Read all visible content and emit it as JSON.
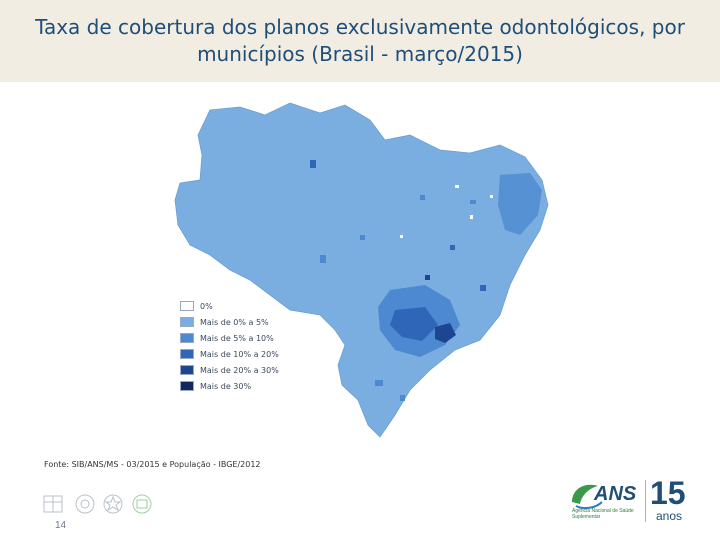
{
  "title": "Taxa de cobertura dos planos exclusivamente odontológicos, por municípios (Brasil - março/2015)",
  "legend": [
    {
      "label": "0%",
      "color": "#ffffff"
    },
    {
      "label": "Mais de 0% a 5%",
      "color": "#7aaee0"
    },
    {
      "label": "Mais de 5% a 10%",
      "color": "#4d89d0"
    },
    {
      "label": "Mais de 10% a 20%",
      "color": "#2f66b8"
    },
    {
      "label": "Mais de 20% a 30%",
      "color": "#1e4690"
    },
    {
      "label": "Mais de 30%",
      "color": "#13285c"
    }
  ],
  "source": "Fonte: SIB/ANS/MS - 03/2015 e População - IBGE/2012",
  "page_number": "14",
  "logo": {
    "ans": "ANS",
    "ans_subtitle": "Agência Nacional de Saúde Suplementar",
    "anniversary_number": "15",
    "anniversary_word": "anos"
  },
  "colors": {
    "title": "#1f4e79",
    "title_band": "#f1ede2",
    "map_base": "#7aaee0",
    "map_dark": "#2f66b8"
  }
}
